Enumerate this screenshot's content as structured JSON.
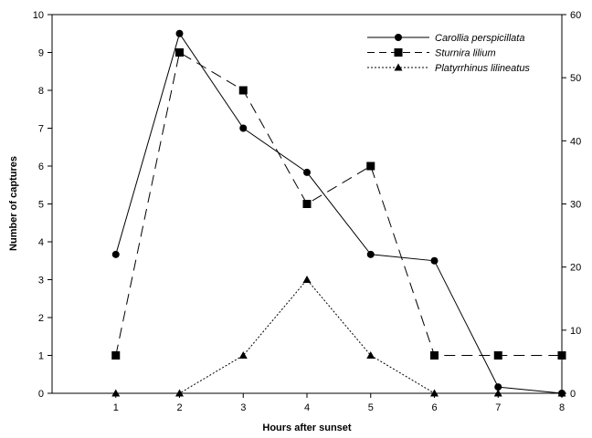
{
  "chart_data": {
    "type": "line",
    "xlabel": "Hours after sunset",
    "ylabel": "Number of captures",
    "categories": [
      "1",
      "2",
      "3",
      "4",
      "5",
      "6",
      "7",
      "8"
    ],
    "x_ticks": [
      "1",
      "2",
      "3",
      "4",
      "5",
      "6",
      "7",
      "8"
    ],
    "xlim": [
      0,
      8
    ],
    "ylim_left": [
      0,
      10
    ],
    "y_left_ticks": [
      "0",
      "1",
      "2",
      "3",
      "4",
      "5",
      "6",
      "7",
      "8",
      "9",
      "10"
    ],
    "ylim_right": [
      0,
      60
    ],
    "y_right_ticks": [
      "0",
      "10",
      "20",
      "30",
      "40",
      "50",
      "60"
    ],
    "legend_position": "top-right",
    "grid": false,
    "series": [
      {
        "name": "Carollia perspicillata",
        "axis": "right",
        "line_style": "solid",
        "marker": "circle",
        "x": [
          1,
          2,
          3,
          4,
          5,
          6,
          7,
          8
        ],
        "values": [
          22,
          57,
          42,
          35,
          22,
          21,
          1,
          0
        ]
      },
      {
        "name": "Sturnira lilium",
        "axis": "left",
        "line_style": "dashed",
        "marker": "square",
        "x": [
          1,
          2,
          3,
          4,
          5,
          6,
          7,
          8
        ],
        "values": [
          1,
          9,
          8,
          5,
          6,
          1,
          1,
          1
        ]
      },
      {
        "name": "Platyrrhinus lilineatus",
        "axis": "left",
        "line_style": "dotted",
        "marker": "triangle",
        "x": [
          1,
          2,
          3,
          4,
          5,
          6,
          7,
          8
        ],
        "values": [
          0,
          0,
          1,
          3,
          1,
          0,
          0,
          0
        ]
      }
    ]
  }
}
